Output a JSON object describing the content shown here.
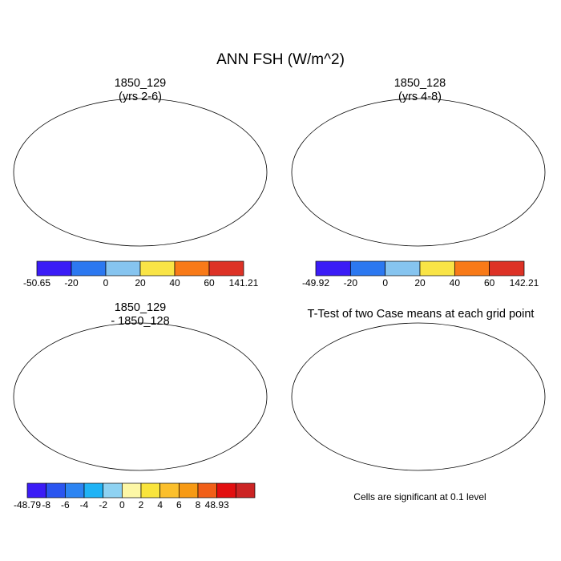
{
  "main_title": "ANN FSH (W/m^2)",
  "panels": [
    {
      "title_line1": "1850_129",
      "title_line2": "(yrs 2-6)",
      "colorbar": {
        "labels": [
          "-50.65",
          "-20",
          "0",
          "20",
          "40",
          "60",
          "141.21"
        ],
        "colors": [
          "#3b1cf6",
          "#2c78f0",
          "#86c4ef",
          "#f9e446",
          "#f87a18",
          "#dd3226"
        ]
      }
    },
    {
      "title_line1": "1850_128",
      "title_line2": "(yrs 4-8)",
      "colorbar": {
        "labels": [
          "-49.92",
          "-20",
          "0",
          "20",
          "40",
          "60",
          "142.21"
        ],
        "colors": [
          "#3b1cf6",
          "#2c78f0",
          "#86c4ef",
          "#f9e446",
          "#f87a18",
          "#dd3226"
        ]
      }
    },
    {
      "title_line1": "1850_129",
      "title_line2": "- 1850_128",
      "colorbar": {
        "labels": [
          "-48.79",
          "-8",
          "-6",
          "-4",
          "-2",
          "0",
          "2",
          "4",
          "6",
          "8",
          "48.93"
        ],
        "colors": [
          "#3b1cf6",
          "#2a55f0",
          "#2c84f2",
          "#1fb3f5",
          "#8ed2f2",
          "#fdf7a6",
          "#f9e43c",
          "#fbbf2c",
          "#f79a14",
          "#f15f18",
          "#e20f10",
          "#cc2424"
        ]
      }
    },
    {
      "title_line1": "T-Test of two Case means at each grid point",
      "title_line2": "",
      "note": "Cells are significant at 0.1 level"
    }
  ]
}
